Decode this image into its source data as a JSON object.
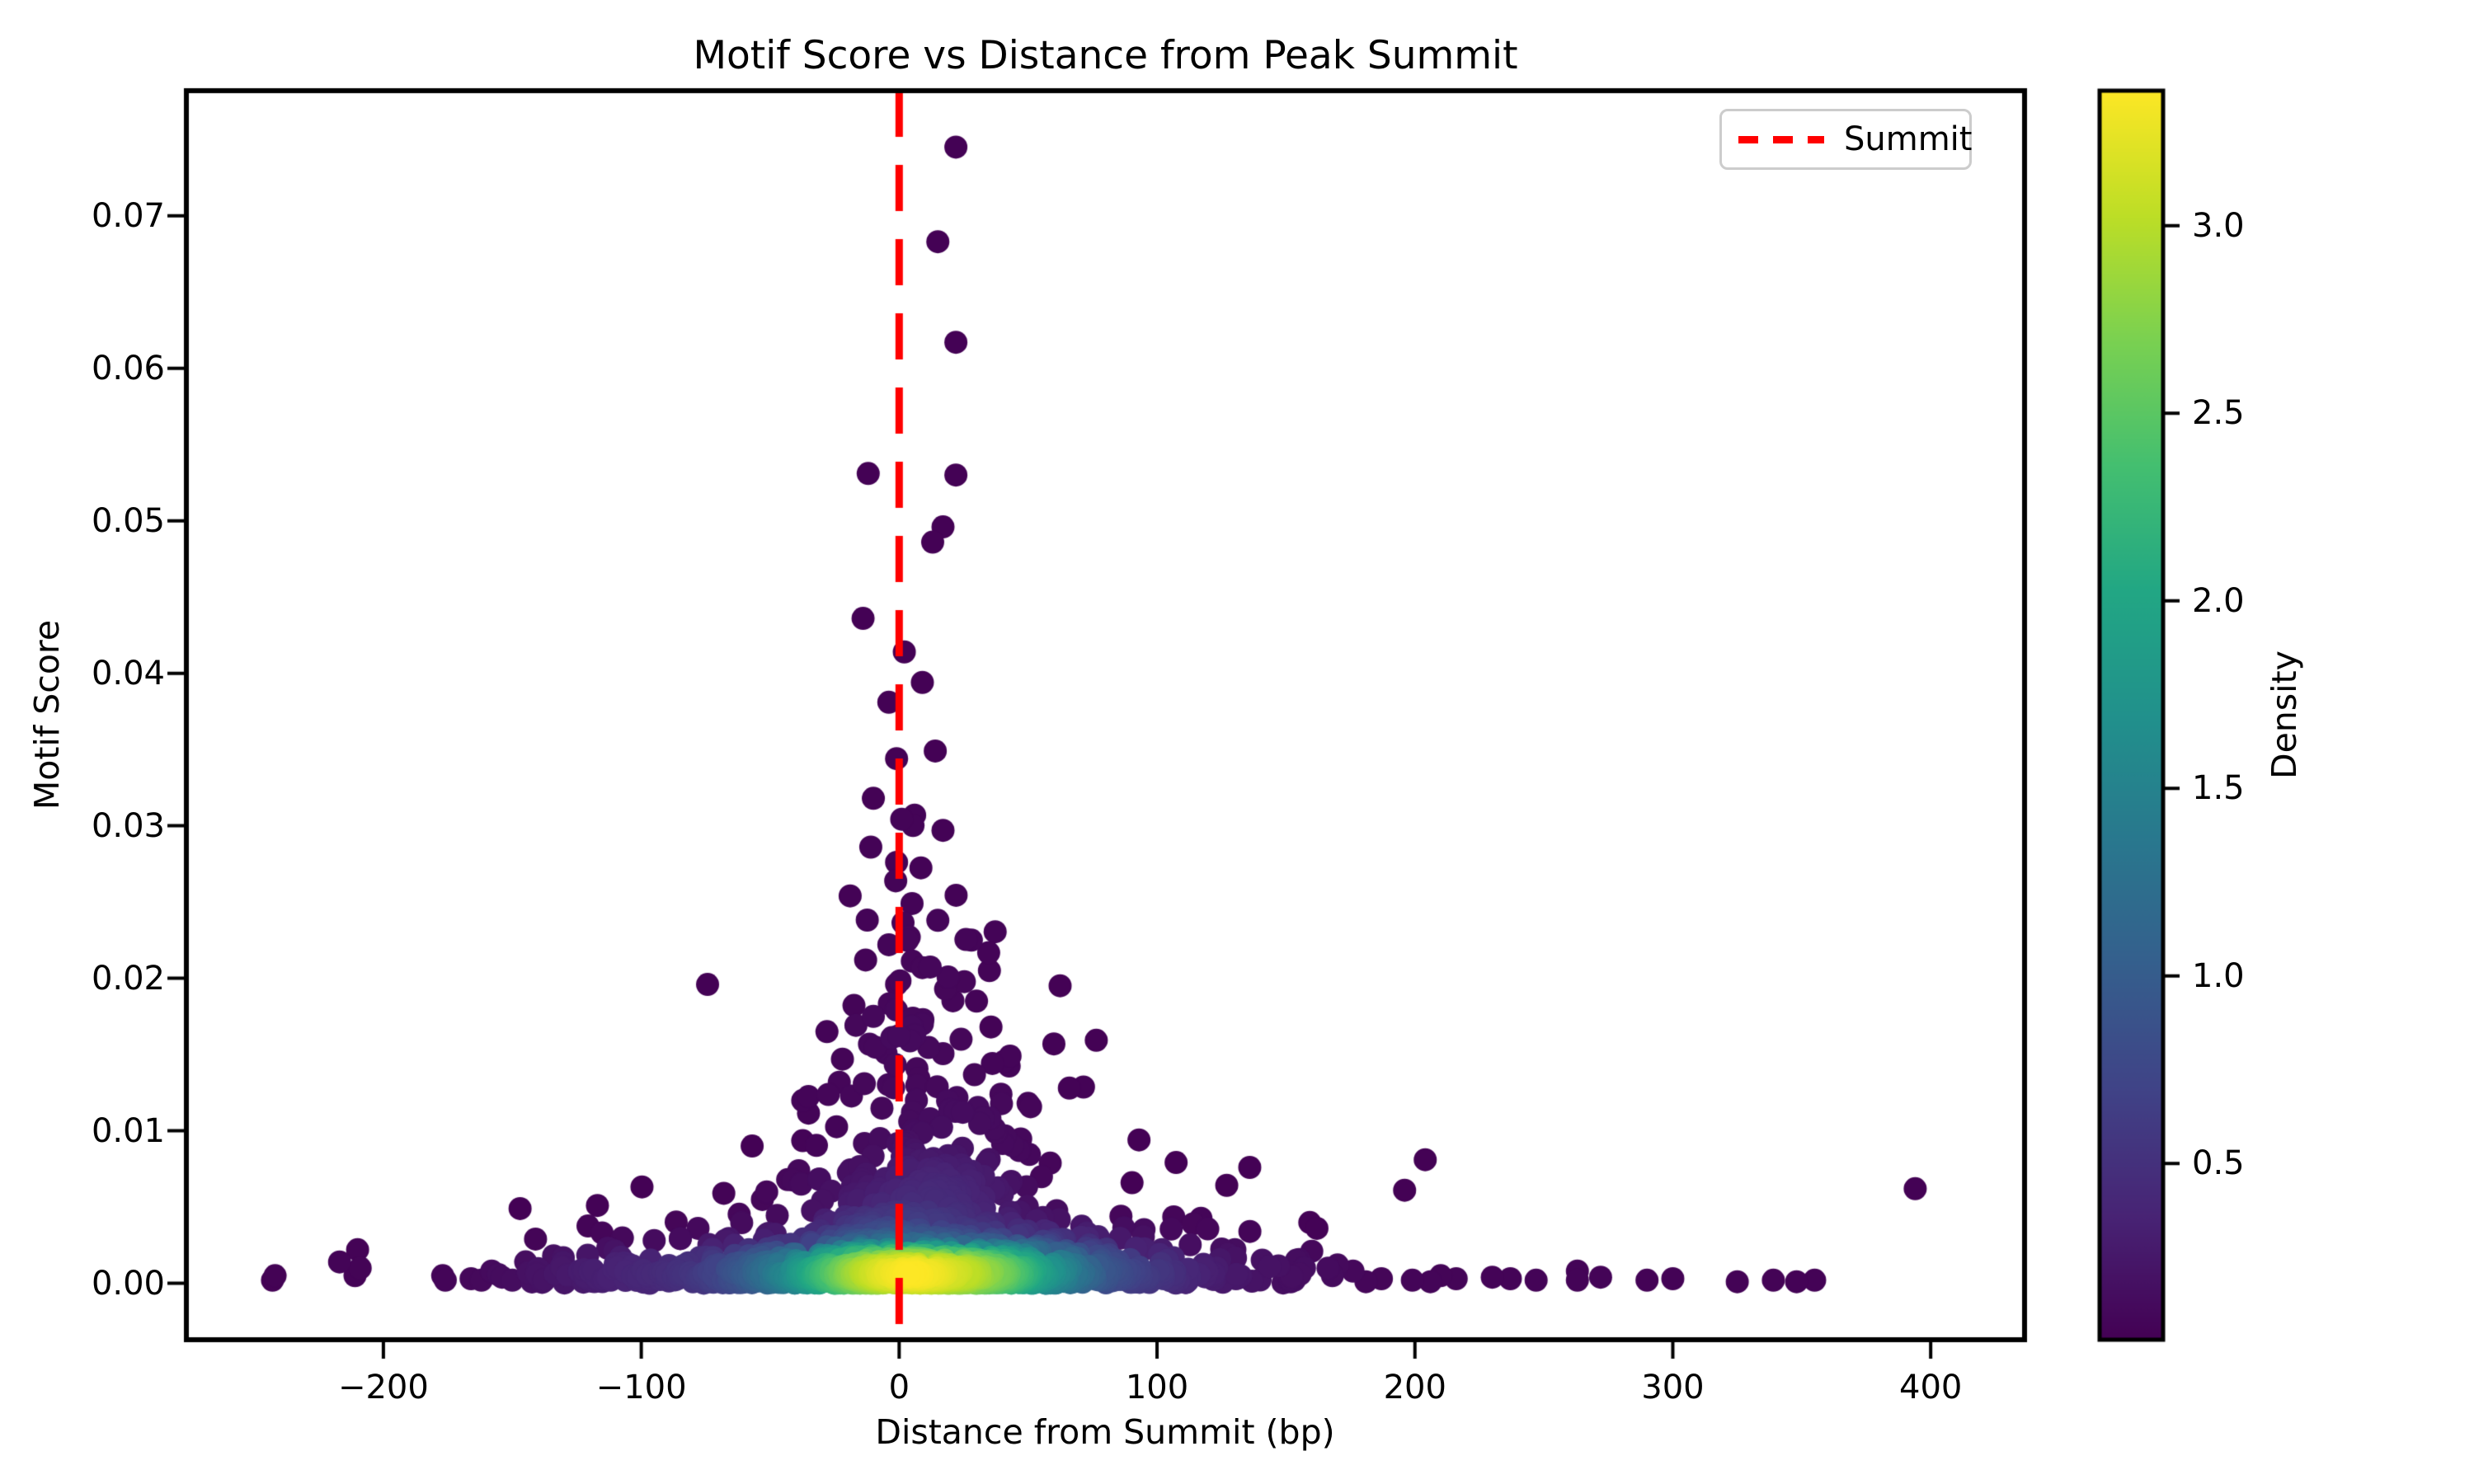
{
  "page": {
    "background": "#ffffff"
  },
  "chart_data": {
    "type": "scatter",
    "title": "Motif Score vs Distance from Peak Summit",
    "xlabel": "Distance from Summit (bp)",
    "ylabel": "Motif Score",
    "xlim": [
      -276.4,
      436.4
    ],
    "ylim": [
      -0.0037,
      0.0782
    ],
    "grid": false,
    "xticks": {
      "values": [
        -200,
        -100,
        0,
        100,
        200,
        300,
        400
      ],
      "labels": [
        "−200",
        "−100",
        "0",
        "100",
        "200",
        "300",
        "400"
      ]
    },
    "yticks": {
      "values": [
        0.0,
        0.01,
        0.02,
        0.03,
        0.04,
        0.05,
        0.06,
        0.07
      ],
      "labels": [
        "0.00",
        "0.01",
        "0.02",
        "0.03",
        "0.04",
        "0.05",
        "0.06",
        "0.07"
      ]
    },
    "vline": {
      "x": 0,
      "color": "#ff0000",
      "linestyle": "dashed",
      "linewidth": 9,
      "dash": [
        56,
        34
      ],
      "label": "Summit"
    },
    "legend": {
      "label": "Summit",
      "position": "upper right",
      "edge_color": "#cccccc"
    },
    "marker": {
      "radius_px": 14,
      "colormap": "viridis"
    },
    "colorbar": {
      "label": "Density",
      "vmin": 0.03,
      "vmax": 3.36,
      "tick_values": [
        0.5,
        1.0,
        1.5,
        2.0,
        2.5,
        3.0
      ],
      "tick_labels": [
        "0.5",
        "1.0",
        "1.5",
        "2.0",
        "2.5",
        "3.0"
      ],
      "colormap": "viridis",
      "stops": [
        [
          0.0,
          "#440154"
        ],
        [
          0.1,
          "#482475"
        ],
        [
          0.2,
          "#404387"
        ],
        [
          0.3,
          "#355f8d"
        ],
        [
          0.4,
          "#29788e"
        ],
        [
          0.5,
          "#21918c"
        ],
        [
          0.6,
          "#22a784"
        ],
        [
          0.7,
          "#44bf70"
        ],
        [
          0.8,
          "#7ad151"
        ],
        [
          0.9,
          "#bdde26"
        ],
        [
          1.0,
          "#fde725"
        ]
      ]
    },
    "points": {
      "seed": 42,
      "density_kernel": {
        "rx_bp": 30,
        "ry_score": 0.0022
      },
      "x_clamp": [
        -252,
        408
      ],
      "outliers": [
        [
          22,
          0.0745
        ],
        [
          15,
          0.0683
        ],
        [
          22,
          0.0617
        ],
        [
          -12,
          0.0531
        ],
        [
          22,
          0.053
        ],
        [
          17,
          0.0496
        ],
        [
          13,
          0.0486
        ],
        [
          -14,
          0.0436
        ],
        [
          2,
          0.0414
        ],
        [
          9,
          0.0394
        ],
        [
          -4,
          0.0381
        ],
        [
          14,
          0.0349
        ],
        [
          -1,
          0.0344
        ],
        [
          -10,
          0.0318
        ],
        [
          6,
          0.0307
        ],
        [
          17,
          0.0297
        ],
        [
          -11,
          0.0286
        ],
        [
          -1,
          0.0276
        ],
        [
          -19,
          0.0254
        ],
        [
          5,
          0.0249
        ],
        [
          15,
          0.0238
        ],
        [
          28,
          0.0225
        ],
        [
          -4,
          0.0222
        ],
        [
          -13,
          0.0212
        ],
        [
          9,
          0.0207
        ],
        [
          35,
          0.0205
        ],
        [
          -1,
          0.0196
        ],
        [
          18,
          0.0193
        ],
        [
          30,
          0.0185
        ],
        [
          -10,
          0.0175
        ],
        [
          9,
          0.017
        ],
        [
          -28,
          0.0165
        ],
        [
          24,
          0.016
        ],
        [
          60,
          0.0157
        ],
        [
          43,
          0.0149
        ],
        [
          -22,
          0.0147
        ],
        [
          66,
          0.0128
        ],
        [
          50,
          0.0118
        ],
        [
          93,
          0.0094
        ],
        [
          -57,
          0.009
        ],
        [
          86,
          0.0044
        ],
        [
          -38,
          0.0065
        ],
        [
          -68,
          0.0059
        ],
        [
          114,
          0.0039
        ],
        [
          136,
          0.0034
        ],
        [
          -78,
          0.0036
        ],
        [
          -95,
          0.0028
        ],
        [
          -113,
          0.0023
        ],
        [
          -134,
          0.0018
        ],
        [
          -117,
          0.0051
        ],
        [
          -141,
          0.0029
        ],
        [
          -147,
          0.0049
        ],
        [
          204,
          0.0081
        ],
        [
          196,
          0.0061
        ],
        [
          394,
          0.0062
        ],
        [
          162,
          0.0036
        ],
        [
          160,
          0.0021
        ],
        [
          168,
          0.0005
        ],
        [
          170,
          0.0012
        ],
        [
          176,
          0.0008
        ],
        [
          181,
          0.0001
        ],
        [
          187,
          0.0003
        ],
        [
          199,
          0.0002
        ],
        [
          206,
          0.0001
        ],
        [
          210,
          0.0005
        ],
        [
          216,
          0.0003
        ],
        [
          230,
          0.0004
        ],
        [
          237,
          0.0003
        ],
        [
          247,
          0.0002
        ],
        [
          263,
          0.0008
        ],
        [
          263,
          0.0002
        ],
        [
          272,
          0.0004
        ],
        [
          290,
          0.0002
        ],
        [
          300,
          0.0003
        ],
        [
          325,
          0.0001
        ],
        [
          339,
          0.0002
        ],
        [
          348,
          0.0001
        ],
        [
          355,
          0.0002
        ],
        [
          -243,
          0.0002
        ],
        [
          -242,
          0.0005
        ],
        [
          -217,
          0.0014
        ],
        [
          -210,
          0.0022
        ],
        [
          -209,
          0.001
        ],
        [
          -211,
          0.0005
        ],
        [
          -177,
          0.0005
        ],
        [
          -176,
          0.0002
        ],
        [
          -166,
          0.0003
        ],
        [
          -162,
          0.0002
        ],
        [
          -158,
          0.0008
        ],
        [
          -154,
          0.0004
        ],
        [
          -150,
          0.0002
        ],
        [
          -131,
          0.0011
        ],
        [
          -124,
          0.0008
        ]
      ],
      "cloud_layers": [
        {
          "n": 520,
          "x": {
            "dist": "normal",
            "mu": 6,
            "sigma": 28
          },
          "y": {
            "dist": "exp",
            "scale": 0.00045,
            "offset": 0
          }
        },
        {
          "n": 620,
          "x": {
            "dist": "normal",
            "mu": 8,
            "sigma": 52
          },
          "y": {
            "dist": "exp",
            "scale": 0.00075,
            "offset": 0
          }
        },
        {
          "n": 230,
          "x": {
            "dist": "uniform",
            "min": -148,
            "max": 160
          },
          "y": {
            "dist": "exp",
            "scale": 0.0007,
            "offset": 0
          }
        },
        {
          "n": 300,
          "x": {
            "dist": "normal",
            "mu": 8,
            "sigma": 45
          },
          "y": {
            "dist": "exp",
            "scale": 0.0019,
            "offset": 0.0006,
            "cap": 0.008
          }
        },
        {
          "n": 230,
          "x": {
            "dist": "normal",
            "mu": 10,
            "sigma": 24
          },
          "y": {
            "dist": "exp",
            "scale": 0.0045,
            "offset": 0.0025,
            "cap": 0.023
          }
        },
        {
          "n": 26,
          "x": {
            "dist": "normal",
            "mu": 10,
            "sigma": 18
          },
          "y": {
            "dist": "exp",
            "scale": 0.006,
            "offset": 0.015,
            "cap": 0.033
          }
        }
      ],
      "n_points_approx": 2020
    }
  }
}
